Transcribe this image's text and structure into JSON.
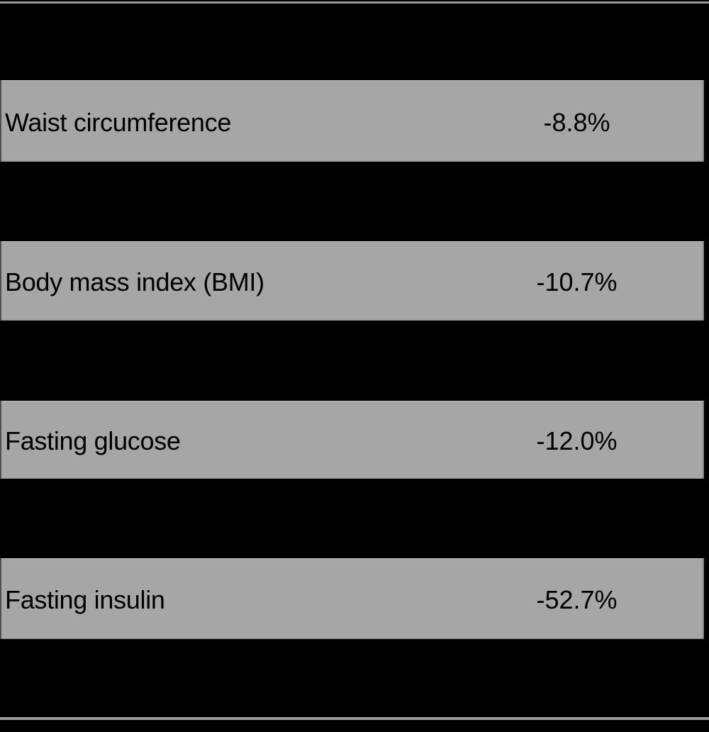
{
  "figure": {
    "rows": [
      {
        "label": "Waist circumference",
        "value": "-8.8%"
      },
      {
        "label": "Body mass index (BMI)",
        "value": "-10.7%"
      },
      {
        "label": "Fasting glucose",
        "value": "-12.0%"
      },
      {
        "label": "Fasting insulin",
        "value": "-52.7%"
      }
    ]
  },
  "chart_data": {
    "type": "table",
    "categories": [
      "Waist circumference",
      "Body mass index (BMI)",
      "Fasting glucose",
      "Fasting insulin"
    ],
    "values": [
      -8.8,
      -10.7,
      -12.0,
      -52.7
    ],
    "value_labels": [
      "-8.8%",
      "-10.7%",
      "-12.0%",
      "-52.7%"
    ],
    "layout_hints": {
      "banded_rows": true,
      "value_column": "centered-right",
      "top_rule": true,
      "bottom_rule": true
    }
  },
  "colors": {
    "background": "#000000",
    "row_fill": "#a6a6a6",
    "text": "#000000",
    "rule": "#9a9a9a"
  }
}
